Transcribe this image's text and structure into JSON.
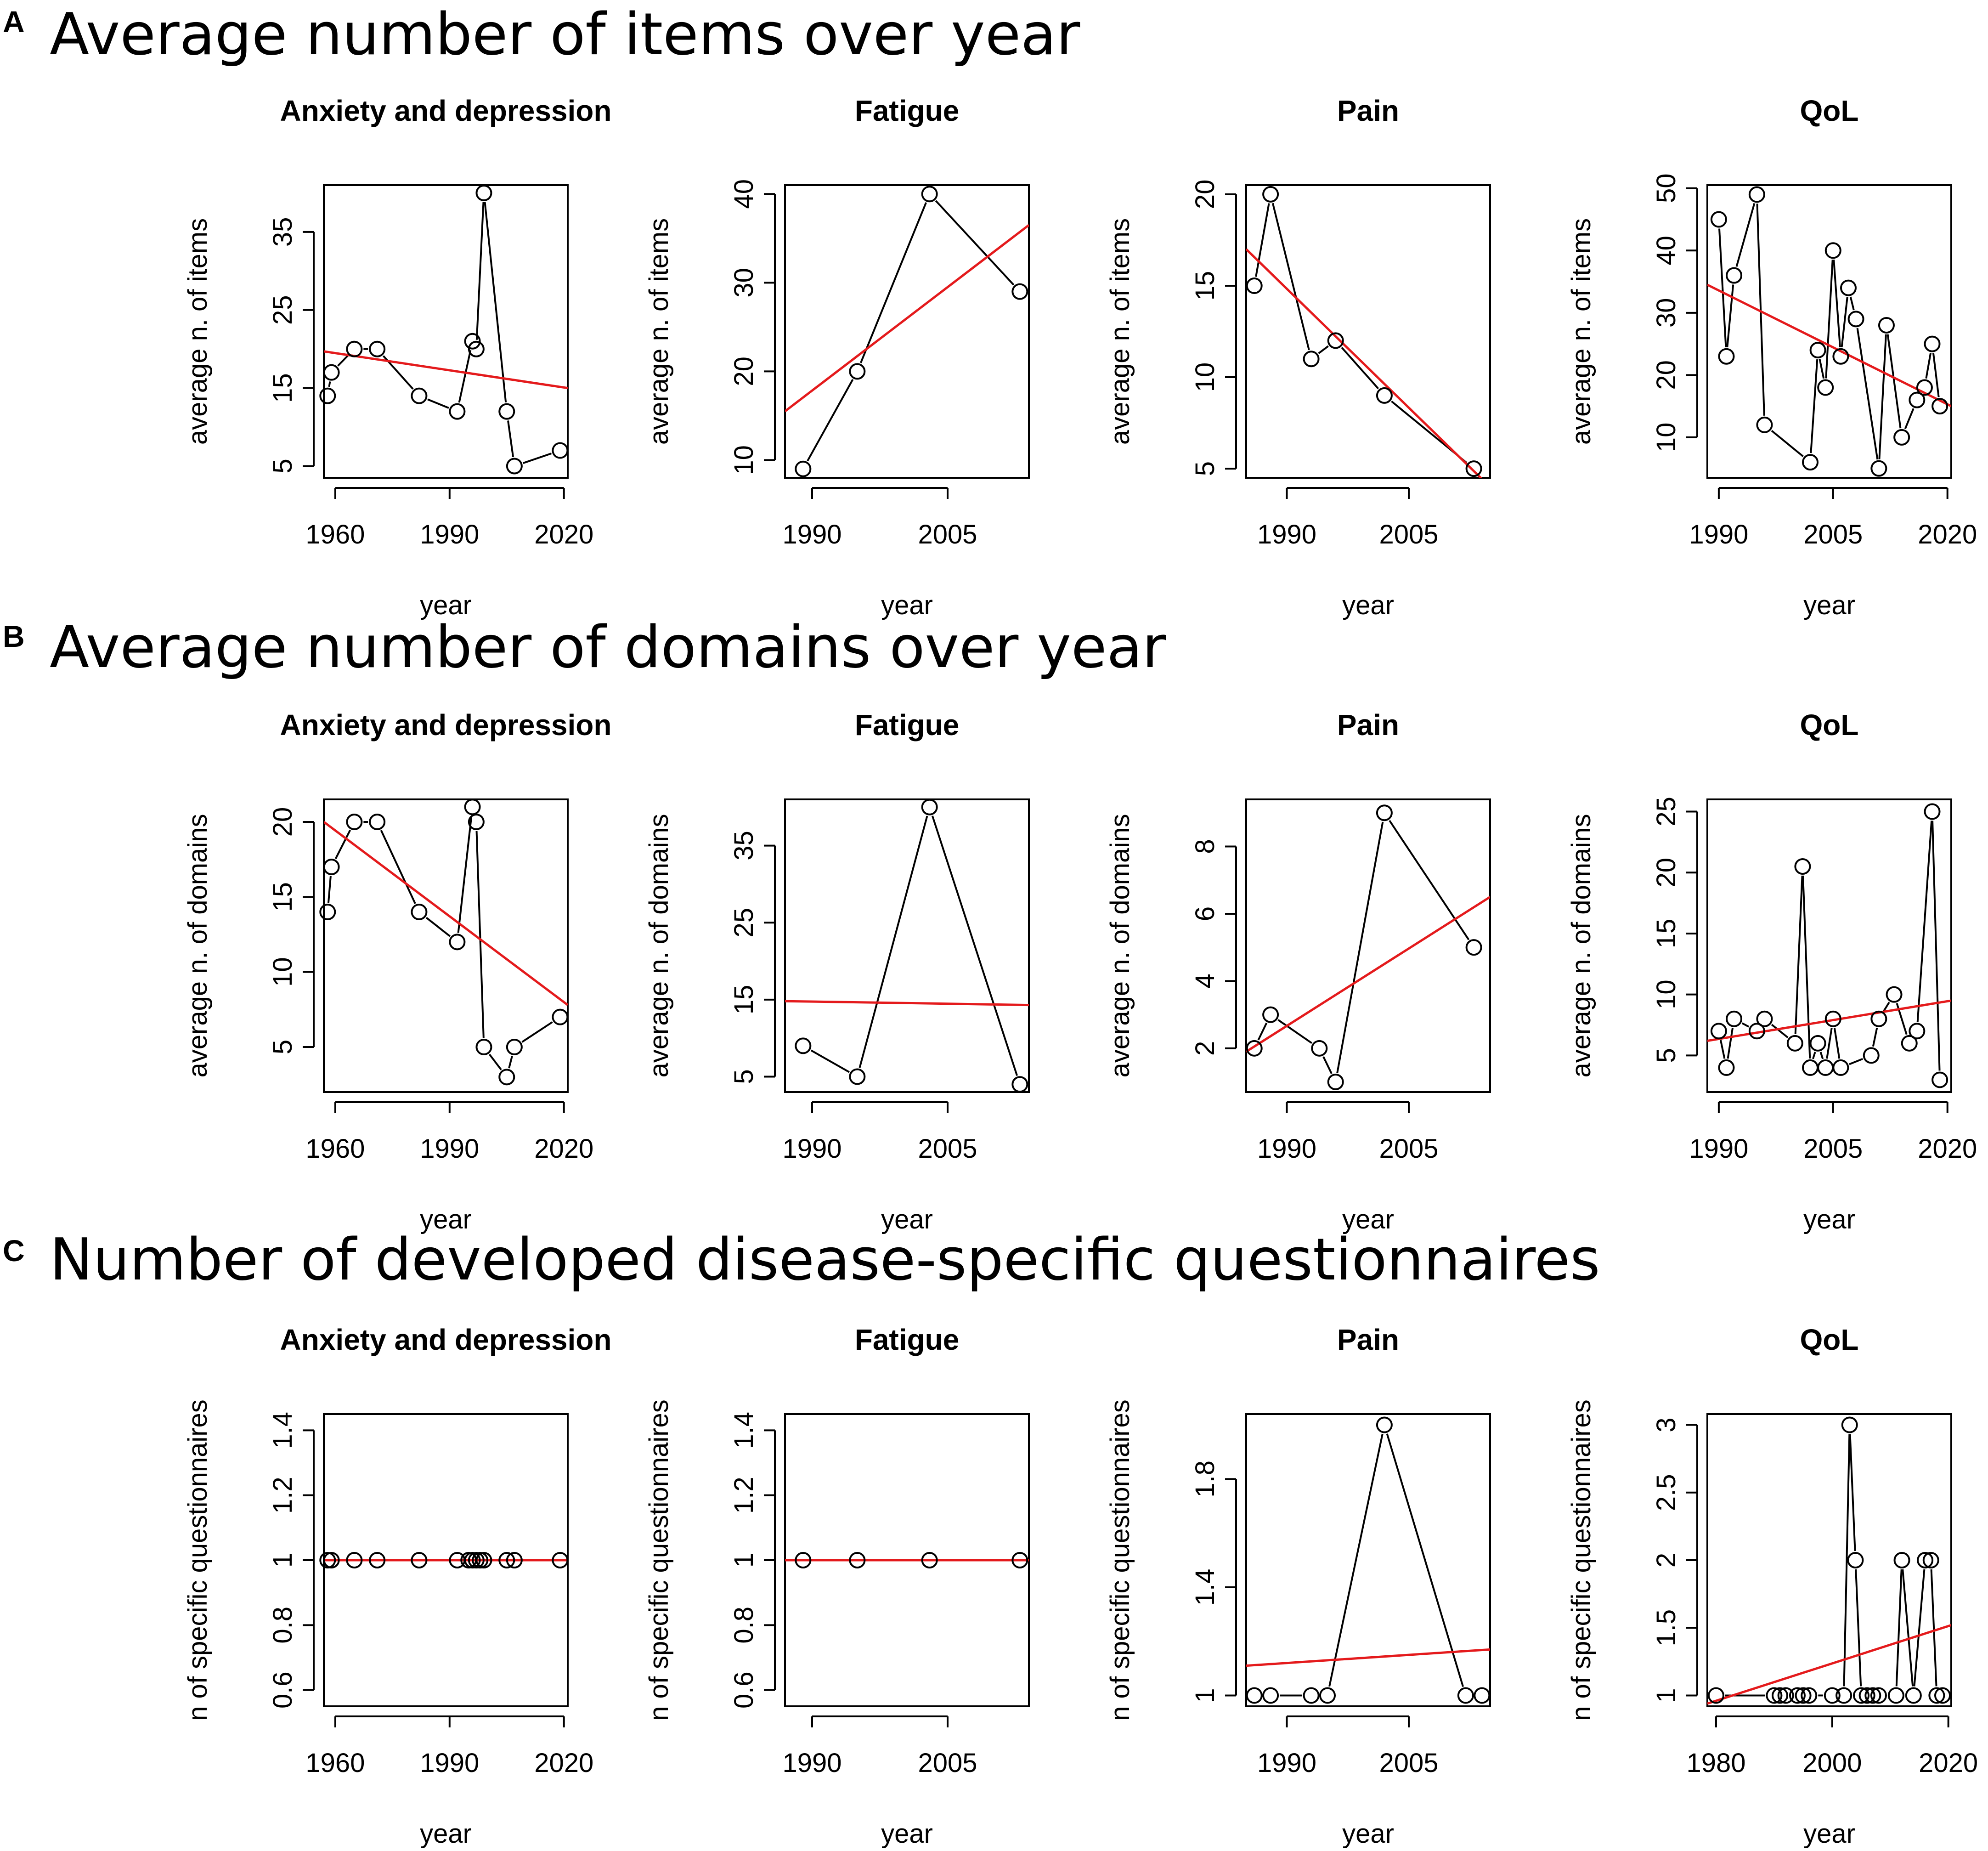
{
  "figure": {
    "sections": [
      {
        "letter": "A",
        "title": "Average number of items over year"
      },
      {
        "letter": "B",
        "title": "Average number of domains over year"
      },
      {
        "letter": "C",
        "title": "Number of developed disease-specific questionnaires"
      }
    ],
    "colors": {
      "points": "#000000",
      "lines": "#000000",
      "regression": "#e41a1c",
      "box": "#000000"
    }
  },
  "chart_data": [
    {
      "type": "line",
      "section": "A",
      "title": "Anxiety and depression",
      "xlabel": "year",
      "ylabel": "average n. of items",
      "xlim": [
        1957,
        2021
      ],
      "ylim": [
        3.5,
        41
      ],
      "xticks": [
        1960,
        1990,
        2020
      ],
      "yticks": [
        5,
        15,
        25,
        35
      ],
      "x": [
        1958,
        1959,
        1965,
        1971,
        1982,
        1992,
        1996,
        1997,
        1999,
        2005,
        2007,
        2019
      ],
      "y": [
        14,
        17,
        20,
        20,
        14,
        12,
        21,
        20,
        40,
        12,
        5,
        7
      ],
      "regression": {
        "x": [
          1957,
          2021
        ],
        "y": [
          19.7,
          15.0
        ]
      }
    },
    {
      "type": "line",
      "section": "A",
      "title": "Fatigue",
      "xlabel": "year",
      "ylabel": "average n. of items",
      "xlim": [
        1987,
        2014
      ],
      "ylim": [
        8,
        41
      ],
      "xticks": [
        1990,
        2005
      ],
      "yticks": [
        10,
        20,
        30,
        40
      ],
      "x": [
        1989,
        1995,
        2003,
        2013
      ],
      "y": [
        9,
        20,
        40,
        29
      ],
      "regression": {
        "x": [
          1987,
          2014
        ],
        "y": [
          15.5,
          36.5
        ]
      }
    },
    {
      "type": "line",
      "section": "A",
      "title": "Pain",
      "xlabel": "year",
      "ylabel": "average n. of items",
      "xlim": [
        1985,
        2015
      ],
      "ylim": [
        4.5,
        20.5
      ],
      "xticks": [
        1990,
        2005
      ],
      "yticks": [
        5,
        10,
        15,
        20
      ],
      "x": [
        1986,
        1988,
        1993,
        1996,
        2002,
        2013
      ],
      "y": [
        15,
        20,
        11,
        12,
        9,
        5
      ],
      "regression": {
        "x": [
          1985,
          2015
        ],
        "y": [
          17.0,
          4.0
        ]
      }
    },
    {
      "type": "line",
      "section": "A",
      "title": "QoL",
      "xlabel": "year",
      "ylabel": "average n. of items",
      "xlim": [
        1988.5,
        2020.5
      ],
      "ylim": [
        3.5,
        50.5
      ],
      "xticks": [
        1990,
        2005,
        2020
      ],
      "yticks": [
        10,
        20,
        30,
        40,
        50
      ],
      "x": [
        1990,
        1991,
        1992,
        1995,
        1996,
        2002,
        2003,
        2004,
        2005,
        2006,
        2007,
        2008,
        2011,
        2012,
        2014,
        2016,
        2017,
        2018,
        2019
      ],
      "y": [
        45,
        23,
        36,
        49,
        12,
        6,
        24,
        18,
        40,
        23,
        34,
        29,
        5,
        28,
        10,
        16,
        18,
        25,
        15
      ],
      "regression": {
        "x": [
          1988.5,
          2020.5
        ],
        "y": [
          34.5,
          15.0
        ]
      }
    },
    {
      "type": "line",
      "section": "B",
      "title": "Anxiety and depression",
      "xlabel": "year",
      "ylabel": "average n. of domains",
      "xlim": [
        1957,
        2021
      ],
      "ylim": [
        2,
        21.5
      ],
      "xticks": [
        1960,
        1990,
        2020
      ],
      "yticks": [
        5,
        10,
        15,
        20
      ],
      "x": [
        1958,
        1959,
        1965,
        1971,
        1982,
        1992,
        1996,
        1997,
        1999,
        2005,
        2007,
        2019
      ],
      "y": [
        14,
        17,
        20,
        20,
        14,
        12,
        21,
        20,
        5,
        3,
        5,
        7
      ],
      "regression": {
        "x": [
          1957,
          2021
        ],
        "y": [
          20.0,
          7.8
        ]
      }
    },
    {
      "type": "line",
      "section": "B",
      "title": "Fatigue",
      "xlabel": "year",
      "ylabel": "average n. of domains",
      "xlim": [
        1987,
        2014
      ],
      "ylim": [
        3,
        41
      ],
      "xticks": [
        1990,
        2005
      ],
      "yticks": [
        5,
        15,
        25,
        35
      ],
      "x": [
        1989,
        1995,
        2003,
        2013
      ],
      "y": [
        9,
        5,
        40,
        4
      ],
      "regression": {
        "x": [
          1987,
          2014
        ],
        "y": [
          14.8,
          14.3
        ]
      }
    },
    {
      "type": "line",
      "section": "B",
      "title": "Pain",
      "xlabel": "year",
      "ylabel": "average n. of domains",
      "xlim": [
        1985,
        2015
      ],
      "ylim": [
        0.7,
        9.4
      ],
      "xticks": [
        1990,
        2005
      ],
      "yticks": [
        2,
        4,
        6,
        8
      ],
      "x": [
        1986,
        1988,
        1994,
        1996,
        2002,
        2013
      ],
      "y": [
        2,
        3,
        2,
        1,
        9,
        5
      ],
      "regression": {
        "x": [
          1985,
          2015
        ],
        "y": [
          1.9,
          6.5
        ]
      }
    },
    {
      "type": "line",
      "section": "B",
      "title": "QoL",
      "xlabel": "year",
      "ylabel": "average n. of domains",
      "xlim": [
        1988.5,
        2020.5
      ],
      "ylim": [
        2,
        26
      ],
      "xticks": [
        1990,
        2005,
        2020
      ],
      "yticks": [
        5,
        10,
        15,
        20,
        25
      ],
      "x": [
        1990,
        1991,
        1992,
        1995,
        1996,
        2000,
        2001,
        2002,
        2003,
        2004,
        2005,
        2006,
        2010,
        2011,
        2013,
        2015,
        2016,
        2018,
        2019
      ],
      "y": [
        7,
        4,
        8,
        7,
        8,
        6,
        20.5,
        4,
        6,
        4,
        8,
        4,
        5,
        8,
        10,
        6,
        7,
        25,
        3
      ],
      "regression": {
        "x": [
          1988.5,
          2020.5
        ],
        "y": [
          6.2,
          9.5
        ]
      }
    },
    {
      "type": "line",
      "section": "C",
      "title": "Anxiety and depression",
      "xlabel": "year",
      "ylabel": "n of specific questionnaires",
      "xlim": [
        1957,
        2021
      ],
      "ylim": [
        0.55,
        1.45
      ],
      "xticks": [
        1960,
        1990,
        2020
      ],
      "yticks": [
        0.6,
        0.8,
        1.0,
        1.2,
        1.4
      ],
      "x": [
        1958,
        1959,
        1965,
        1971,
        1982,
        1992,
        1995,
        1996,
        1997,
        1998,
        1999,
        2005,
        2007,
        2019
      ],
      "y": [
        1,
        1,
        1,
        1,
        1,
        1,
        1,
        1,
        1,
        1,
        1,
        1,
        1,
        1
      ],
      "regression": {
        "x": [
          1957,
          2021
        ],
        "y": [
          1.0,
          1.0
        ]
      }
    },
    {
      "type": "line",
      "section": "C",
      "title": "Fatigue",
      "xlabel": "year",
      "ylabel": "n of specific questionnaires",
      "xlim": [
        1987,
        2014
      ],
      "ylim": [
        0.55,
        1.45
      ],
      "xticks": [
        1990,
        2005
      ],
      "yticks": [
        0.6,
        0.8,
        1.0,
        1.2,
        1.4
      ],
      "x": [
        1989,
        1995,
        2003,
        2013
      ],
      "y": [
        1,
        1,
        1,
        1
      ],
      "regression": {
        "x": [
          1987,
          2014
        ],
        "y": [
          1.0,
          1.0
        ]
      }
    },
    {
      "type": "line",
      "section": "C",
      "title": "Pain",
      "xlabel": "year",
      "ylabel": "n of specific questionnaires",
      "xlim": [
        1985,
        2015
      ],
      "ylim": [
        0.96,
        2.04
      ],
      "xticks": [
        1990,
        2005
      ],
      "yticks": [
        1.0,
        1.4,
        1.8
      ],
      "x": [
        1986,
        1988,
        1993,
        1995,
        2002,
        2012,
        2014
      ],
      "y": [
        1,
        1,
        1,
        1,
        2,
        1,
        1
      ],
      "regression": {
        "x": [
          1985,
          2015
        ],
        "y": [
          1.11,
          1.17
        ]
      }
    },
    {
      "type": "line",
      "section": "C",
      "title": "QoL",
      "xlabel": "year",
      "ylabel": "n of specific questionnaires",
      "xlim": [
        1978.5,
        2020.5
      ],
      "ylim": [
        0.92,
        3.08
      ],
      "xticks": [
        1980,
        2000,
        2020
      ],
      "yticks": [
        1.0,
        1.5,
        2.0,
        2.5,
        3.0
      ],
      "x": [
        1980,
        1990,
        1991,
        1992,
        1994,
        1995,
        1996,
        2000,
        2002,
        2003,
        2004,
        2005,
        2006,
        2007,
        2008,
        2011,
        2012,
        2014,
        2016,
        2017,
        2018,
        2019
      ],
      "y": [
        1,
        1,
        1,
        1,
        1,
        1,
        1,
        1,
        1,
        3,
        2,
        1,
        1,
        1,
        1,
        1,
        2,
        1,
        2,
        2,
        1,
        1
      ],
      "regression": {
        "x": [
          1978.5,
          2020.5
        ],
        "y": [
          0.94,
          1.52
        ]
      }
    }
  ]
}
